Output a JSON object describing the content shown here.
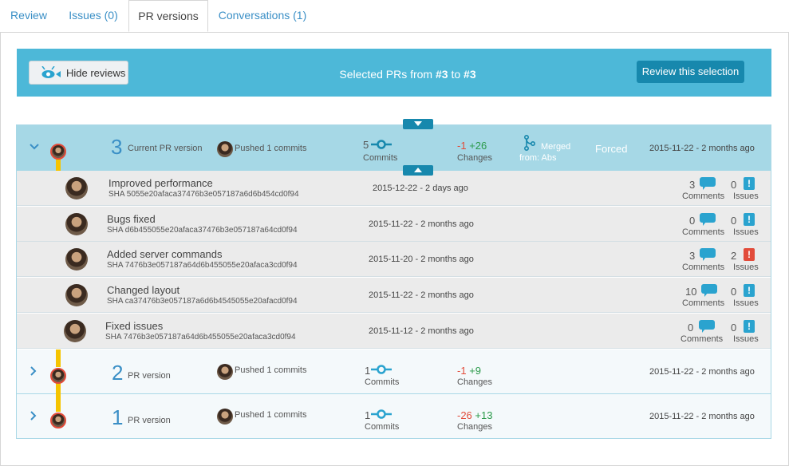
{
  "tabs": [
    {
      "label": "Review"
    },
    {
      "label": "Issues (0)"
    },
    {
      "label": "PR versions"
    },
    {
      "label": "Conversations (1)"
    }
  ],
  "banner": {
    "hide_reviews": "Hide reviews",
    "selected_prefix": "Selected PRs from",
    "from": "#3",
    "to_word": "to",
    "to": "#3",
    "review_button": "Review this selection"
  },
  "current": {
    "number": "3",
    "label": "Current PR version",
    "pushed": "Pushed 1 commits",
    "commits": "5",
    "commits_label": "Commits",
    "minus": "-1",
    "plus": "+26",
    "changes_label": "Changes",
    "merged": "Merged",
    "merged_from": "from: Abs",
    "forced": "Forced",
    "date": "2015-11-22 - 2 months ago"
  },
  "commits": [
    {
      "title": "Improved performance",
      "sha": "SHA 5055e20afaca37476b3e057187a6d6b454cd0f94",
      "date": "2015-12-22 - 2 days ago",
      "comments": "3",
      "issues": "0",
      "issues_alert": false
    },
    {
      "title": "Bugs fixed",
      "sha": "SHA d6b455055e20afaca37476b3e057187a64cd0f94",
      "date": "2015-11-22 - 2 months ago",
      "comments": "0",
      "issues": "0",
      "issues_alert": false
    },
    {
      "title": "Added server commands",
      "sha": "SHA 7476b3e057187a64d6b455055e20afaca3cd0f94",
      "date": "2015-11-20 - 2 months ago",
      "comments": "3",
      "issues": "2",
      "issues_alert": true
    },
    {
      "title": "Changed layout",
      "sha": "SHA ca37476b3e057187a6d6b4545055e20afacd0f94",
      "date": "2015-11-22 - 2 months ago",
      "comments": "10",
      "issues": "0",
      "issues_alert": false
    },
    {
      "title": "Fixed issues",
      "sha": "SHA 7476b3e057187a64d6b455055e20afaca3cd0f94",
      "date": "2015-11-12 - 2 months ago",
      "comments": "0",
      "issues": "0",
      "issues_alert": false
    }
  ],
  "comments_label": "Comments",
  "issues_label": "Issues",
  "versions": [
    {
      "number": "2",
      "label": "PR version",
      "pushed": "Pushed 1 commits",
      "commits": "1",
      "commits_label": "Commits",
      "minus": "-1",
      "plus": "+9",
      "changes_label": "Changes",
      "date": "2015-11-22 - 2 months ago"
    },
    {
      "number": "1",
      "label": "PR version",
      "pushed": "Pushed 1 commits",
      "commits": "1",
      "commits_label": "Commits",
      "minus": "-26",
      "plus": "+13",
      "changes_label": "Changes",
      "date": "2015-11-22 - 2 months ago"
    }
  ],
  "colors": {
    "accent": "#3a8fc6",
    "banner": "#4db8d8",
    "timeline": "#f5c400",
    "alert": "#e24b3a"
  }
}
